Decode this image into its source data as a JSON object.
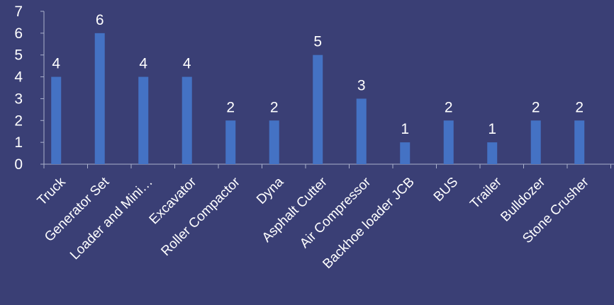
{
  "chart_data": {
    "type": "bar",
    "title": "",
    "xlabel": "",
    "ylabel": "",
    "ylim": [
      0,
      7
    ],
    "yticks": [
      0,
      1,
      2,
      3,
      4,
      5,
      6,
      7
    ],
    "grid": false,
    "legend": "none",
    "categories": [
      "Truck",
      "Generator Set",
      "Loader and Mini…",
      "Excavator",
      "Roller Compactor",
      "Dyna",
      "Asphalt Cutter",
      "Air Compressor",
      "Backhoe loader JCB",
      "BUS",
      "Trailer",
      "Bulldozer",
      "Stone Crusher"
    ],
    "values": [
      4,
      6,
      4,
      4,
      2,
      2,
      5,
      3,
      1,
      2,
      1,
      2,
      2
    ],
    "bar_color": "#4472c4",
    "text_color": "#ffffff",
    "axis_color": "#aab0cc",
    "background": "#3a3f75"
  }
}
